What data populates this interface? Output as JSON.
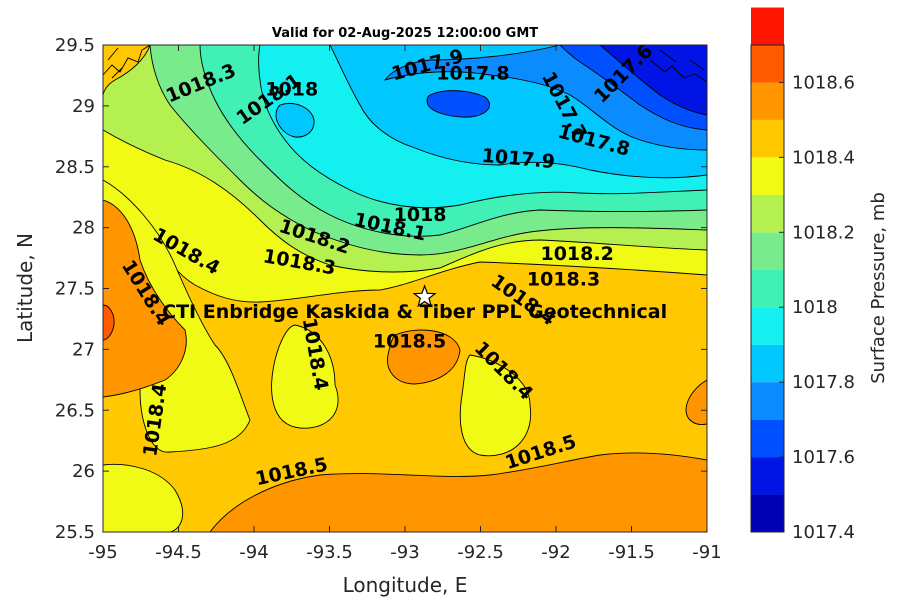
{
  "title": "Valid for 02-Aug-2025 12:00:00 GMT",
  "map": {
    "xlabel": "Longitude, E",
    "ylabel": "Latitude, N",
    "xlim": [
      -95,
      -91
    ],
    "ylim": [
      25.5,
      29.5
    ],
    "x_ticks": [
      "-95",
      "-94.5",
      "-94",
      "-93.5",
      "-93",
      "-92.5",
      "-92",
      "-91.5",
      "-91"
    ],
    "y_ticks": [
      "29.5",
      "29",
      "28.5",
      "28",
      "27.5",
      "27",
      "26.5",
      "26",
      "25.5"
    ],
    "site_marker": {
      "lon": -92.87,
      "lat": 27.43,
      "symbol": "star"
    },
    "site_label": "CTI Enbridge  Kaskida & Tiber PPL Geotechnical",
    "contour_labels": [
      {
        "text": "1018.3",
        "lon": -94.35,
        "lat": 29.18,
        "rot": -22
      },
      {
        "text": "1018.1",
        "lon": -93.9,
        "lat": 29.05,
        "rot": -35
      },
      {
        "text": "1018",
        "lon": -93.75,
        "lat": 29.13,
        "rot": 0
      },
      {
        "text": "1017.9",
        "lon": -92.85,
        "lat": 29.33,
        "rot": -15
      },
      {
        "text": "1017.8",
        "lon": -92.55,
        "lat": 29.26,
        "rot": 0
      },
      {
        "text": "1017.6",
        "lon": -91.55,
        "lat": 29.26,
        "rot": -45
      },
      {
        "text": "1017.7",
        "lon": -91.95,
        "lat": 29.0,
        "rot": 62
      },
      {
        "text": "1017.8",
        "lon": -91.75,
        "lat": 28.71,
        "rot": 15
      },
      {
        "text": "1017.9",
        "lon": -92.25,
        "lat": 28.56,
        "rot": 5
      },
      {
        "text": "1018",
        "lon": -92.9,
        "lat": 28.1,
        "rot": 0
      },
      {
        "text": "1018.1",
        "lon": -93.1,
        "lat": 28.0,
        "rot": 12
      },
      {
        "text": "1018.2",
        "lon": -93.6,
        "lat": 27.92,
        "rot": 18
      },
      {
        "text": "1018.3",
        "lon": -93.7,
        "lat": 27.71,
        "rot": 10
      },
      {
        "text": "1018.2",
        "lon": -91.86,
        "lat": 27.78,
        "rot": 0
      },
      {
        "text": "1018.3",
        "lon": -91.95,
        "lat": 27.57,
        "rot": 0
      },
      {
        "text": "1018.4",
        "lon": -94.45,
        "lat": 27.8,
        "rot": 30
      },
      {
        "text": "1018.4",
        "lon": -94.72,
        "lat": 27.46,
        "rot": 58
      },
      {
        "text": "1018.4",
        "lon": -92.22,
        "lat": 27.4,
        "rot": 35
      },
      {
        "text": "1018.5",
        "lon": -92.97,
        "lat": 27.06,
        "rot": 0
      },
      {
        "text": "1018.4",
        "lon": -93.6,
        "lat": 26.96,
        "rot": 80
      },
      {
        "text": "1018.4",
        "lon": -92.35,
        "lat": 26.82,
        "rot": 45
      },
      {
        "text": "1018.4",
        "lon": -94.65,
        "lat": 26.42,
        "rot": -82
      },
      {
        "text": "1018.5",
        "lon": -93.75,
        "lat": 25.99,
        "rot": -12
      },
      {
        "text": "1018.5",
        "lon": -92.1,
        "lat": 26.15,
        "rot": -18
      }
    ]
  },
  "colorbar": {
    "label": "Surface Pressure, mb",
    "min": 1017.4,
    "max": 1018.7,
    "step": 0.1,
    "ticks": [
      "1018.6",
      "1018.4",
      "1018.2",
      "1018",
      "1017.8",
      "1017.6",
      "1017.4"
    ],
    "colors": [
      "#0000b4",
      "#0014e6",
      "#0050ff",
      "#0a8cff",
      "#00c8ff",
      "#14f0f0",
      "#40f0b4",
      "#78ec8c",
      "#b4f050",
      "#f0fa14",
      "#ffc800",
      "#ff9600",
      "#ff5a00",
      "#ff1400"
    ]
  }
}
